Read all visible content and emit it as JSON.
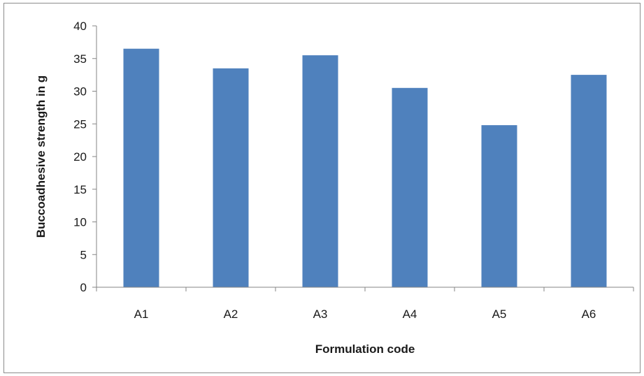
{
  "chart_data": {
    "type": "bar",
    "categories": [
      "A1",
      "A2",
      "A3",
      "A4",
      "A5",
      "A6"
    ],
    "series": [
      {
        "values": [
          36.5,
          33.5,
          35.5,
          30.5,
          24.8,
          32.5
        ],
        "color": "#4f81bd"
      }
    ],
    "title": "",
    "xlabel": "Formulation code",
    "ylabel": "Buccoadhesive strength in g",
    "ylim": [
      0,
      40
    ],
    "ytick_step": 5,
    "grid": false,
    "legend": "none"
  }
}
